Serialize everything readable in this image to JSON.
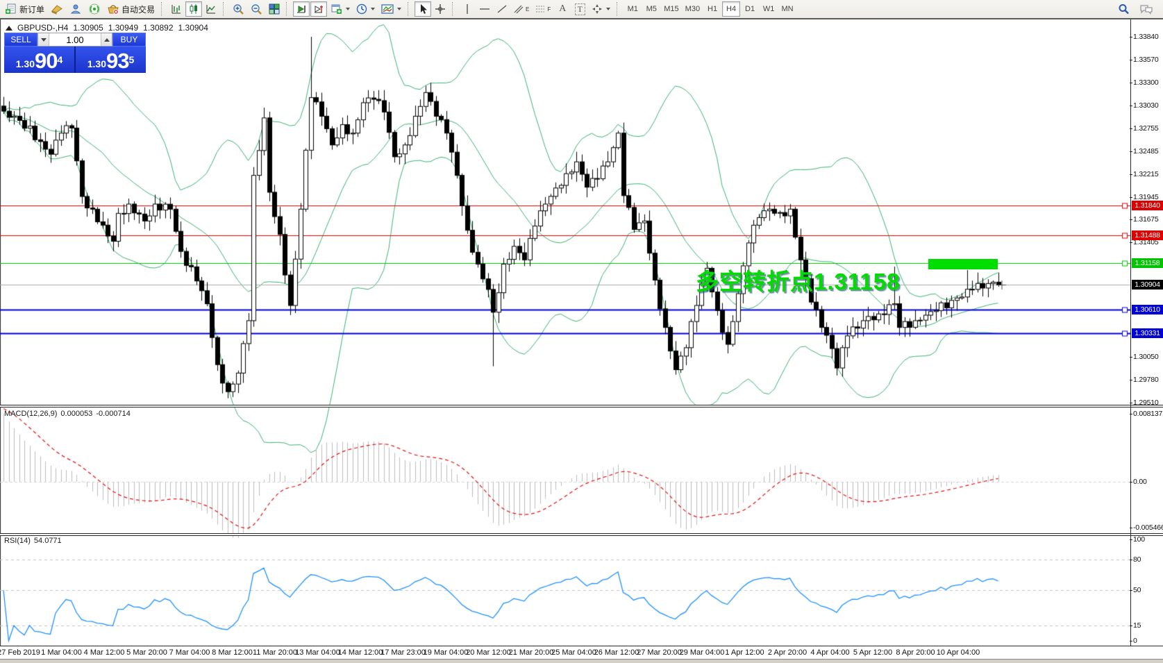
{
  "toolbar": {
    "new_order_label": "新订单",
    "autotrading_label": "自动交易",
    "timeframes": [
      "M1",
      "M5",
      "M15",
      "M30",
      "H1",
      "H4",
      "D1",
      "W1",
      "MN"
    ],
    "active_timeframe": "H4",
    "tool_glyphs": {
      "channel": "E",
      "fibonacci": "F",
      "text": "A",
      "label": "T"
    }
  },
  "chart_header": {
    "symbol": "GBPUSD-,H4",
    "open": "1.30905",
    "high": "1.30949",
    "low": "1.30892",
    "close": "1.30904"
  },
  "trade_panel": {
    "sell_label": "SELL",
    "buy_label": "BUY",
    "volume": "1.00",
    "sell_price": {
      "prefix": "1.30",
      "big": "90",
      "sup": "4"
    },
    "buy_price": {
      "prefix": "1.30",
      "big": "93",
      "sup": "5"
    }
  },
  "annotation": {
    "text": "多空转折点1.31158",
    "color": "#00dc00"
  },
  "indicators": {
    "macd": {
      "label": "MACD(12,26,9)",
      "value_main": "0.000053",
      "value_signal": "-0.000714"
    },
    "rsi": {
      "label": "RSI(14)",
      "value": "54.0771"
    }
  },
  "price_axis": {
    "ticks": [
      "1.33840",
      "1.33570",
      "1.33300",
      "1.33030",
      "1.32755",
      "1.32485",
      "1.32215",
      "1.31945",
      "1.31675",
      "1.31405",
      "1.30050",
      "1.29780",
      "1.29510"
    ]
  },
  "macd_axis": {
    "ticks": [
      {
        "value": 0.008137,
        "label": "0.008137"
      },
      {
        "value": 0,
        "label": "0.00"
      },
      {
        "value": -0.005466,
        "label": "-0.005466"
      }
    ]
  },
  "rsi_axis": {
    "ticks": [
      {
        "value": 100,
        "label": "100"
      },
      {
        "value": 80,
        "label": "80"
      },
      {
        "value": 50,
        "label": "50"
      },
      {
        "value": 15,
        "label": "15"
      },
      {
        "value": 0,
        "label": "0"
      }
    ],
    "dashed_levels": [
      80,
      50,
      15
    ]
  },
  "levels": [
    {
      "price": 1.3184,
      "label": "1.31840",
      "color": "#dd0000",
      "line_width": 1
    },
    {
      "price": 1.31488,
      "label": "1.31488",
      "color": "#dd0000",
      "line_width": 1
    },
    {
      "price": 1.31158,
      "label": "1.31158",
      "color": "#00c400",
      "line_width": 1
    },
    {
      "price": 1.3061,
      "label": "1.30610",
      "color": "#0000d8",
      "line_width": 2
    },
    {
      "price": 1.30331,
      "label": "1.30331",
      "color": "#0000d8",
      "line_width": 2
    }
  ],
  "current_price": {
    "price": 1.30904,
    "label": "1.30904",
    "line_color": "#ababab",
    "label_bg": "#000000"
  },
  "highlight_box": {
    "bar_start": 178,
    "bar_end": 190.5,
    "price_top": 1.3121,
    "price_bottom": 1.31085,
    "color": "#00dd00"
  },
  "time_axis": {
    "labels": [
      "27 Feb 2019",
      "1 Mar 04:00",
      "4 Mar 12:00",
      "5 Mar 20:00",
      "7 Mar 04:00",
      "8 Mar 12:00",
      "11 Mar 20:00",
      "13 Mar 04:00",
      "14 Mar 12:00",
      "17 Mar 23:00",
      "19 Mar 04:00",
      "20 Mar 12:00",
      "21 Mar 20:00",
      "25 Mar 04:00",
      "26 Mar 12:00",
      "27 Mar 20:00",
      "29 Mar 04:00",
      "1 Apr 12:00",
      "2 Apr 20:00",
      "4 Apr 04:00",
      "5 Apr 12:00",
      "8 Apr 20:00",
      "10 Apr 04:00"
    ],
    "first_center_x": 27,
    "spacing_px": 61.5
  },
  "chart_data": {
    "type": "candlestick",
    "symbol": "GBPUSD",
    "timeframe": "H4",
    "bar_count": 192,
    "bar_spacing_px": 7.5,
    "first_bar_x": 5,
    "y_range": [
      1.29485,
      1.34029
    ],
    "close_anchors": [
      [
        0,
        1.3296
      ],
      [
        3,
        1.3285
      ],
      [
        7,
        1.326
      ],
      [
        9,
        1.3245
      ],
      [
        11,
        1.327
      ],
      [
        13,
        1.3276
      ],
      [
        15,
        1.3195
      ],
      [
        18,
        1.3165
      ],
      [
        21,
        1.3142
      ],
      [
        22,
        1.3175
      ],
      [
        24,
        1.3186
      ],
      [
        27,
        1.3166
      ],
      [
        29,
        1.3186
      ],
      [
        32,
        1.318
      ],
      [
        34,
        1.313
      ],
      [
        37,
        1.3095
      ],
      [
        39,
        1.3068
      ],
      [
        41,
        1.2996
      ],
      [
        43,
        1.2964
      ],
      [
        45,
        1.2986
      ],
      [
        47,
        1.3048
      ],
      [
        48,
        1.322
      ],
      [
        50,
        1.3288
      ],
      [
        51,
        1.32
      ],
      [
        53,
        1.315
      ],
      [
        55,
        1.3066
      ],
      [
        57,
        1.318
      ],
      [
        59,
        1.3312
      ],
      [
        61,
        1.329
      ],
      [
        63,
        1.3256
      ],
      [
        65,
        1.328
      ],
      [
        67,
        1.327
      ],
      [
        69,
        1.3306
      ],
      [
        71,
        1.331
      ],
      [
        73,
        1.3295
      ],
      [
        75,
        1.3242
      ],
      [
        77,
        1.3256
      ],
      [
        79,
        1.329
      ],
      [
        81,
        1.3318
      ],
      [
        83,
        1.329
      ],
      [
        85,
        1.327
      ],
      [
        87,
        1.322
      ],
      [
        89,
        1.3155
      ],
      [
        91,
        1.3115
      ],
      [
        93,
        1.3085
      ],
      [
        94,
        1.3058
      ],
      [
        96,
        1.3115
      ],
      [
        98,
        1.3136
      ],
      [
        100,
        1.312
      ],
      [
        102,
        1.316
      ],
      [
        104,
        1.3186
      ],
      [
        106,
        1.3205
      ],
      [
        108,
        1.3222
      ],
      [
        110,
        1.3236
      ],
      [
        112,
        1.3206
      ],
      [
        114,
        1.3216
      ],
      [
        116,
        1.3236
      ],
      [
        118,
        1.327
      ],
      [
        119,
        1.3196
      ],
      [
        121,
        1.3156
      ],
      [
        123,
        1.3166
      ],
      [
        125,
        1.3096
      ],
      [
        127,
        1.304
      ],
      [
        129,
        1.299
      ],
      [
        131,
        1.3016
      ],
      [
        133,
        1.3066
      ],
      [
        135,
        1.311
      ],
      [
        137,
        1.306
      ],
      [
        139,
        1.302
      ],
      [
        141,
        1.308
      ],
      [
        143,
        1.314
      ],
      [
        145,
        1.317
      ],
      [
        147,
        1.318
      ],
      [
        149,
        1.3176
      ],
      [
        151,
        1.318
      ],
      [
        153,
        1.312
      ],
      [
        155,
        1.307
      ],
      [
        157,
        1.304
      ],
      [
        159,
        1.3015
      ],
      [
        160,
        1.2992
      ],
      [
        162,
        1.303
      ],
      [
        165,
        1.3048
      ],
      [
        168,
        1.3056
      ],
      [
        171,
        1.3068
      ],
      [
        172,
        1.304
      ],
      [
        175,
        1.3048
      ],
      [
        179,
        1.306
      ],
      [
        182,
        1.3072
      ],
      [
        186,
        1.3085
      ],
      [
        189,
        1.3092
      ],
      [
        191,
        1.30904
      ]
    ],
    "wick_overrides": [
      {
        "i": 59,
        "high": 1.3384
      },
      {
        "i": 94,
        "low": 1.2994
      },
      {
        "i": 171,
        "high": 1.3112
      },
      {
        "i": 185,
        "high": 1.3108
      }
    ],
    "indicators": {
      "bollinger": {
        "period": 20,
        "deviation": 2,
        "color": "#3cb371"
      },
      "macd": {
        "fast": 12,
        "slow": 26,
        "signal": 9,
        "histogram_color": "#bdbdbd",
        "signal_color": "#e01010",
        "display_max": 0.008137,
        "display_min": -0.005466
      },
      "rsi": {
        "period": 14,
        "color": "#1e90ff"
      }
    }
  }
}
